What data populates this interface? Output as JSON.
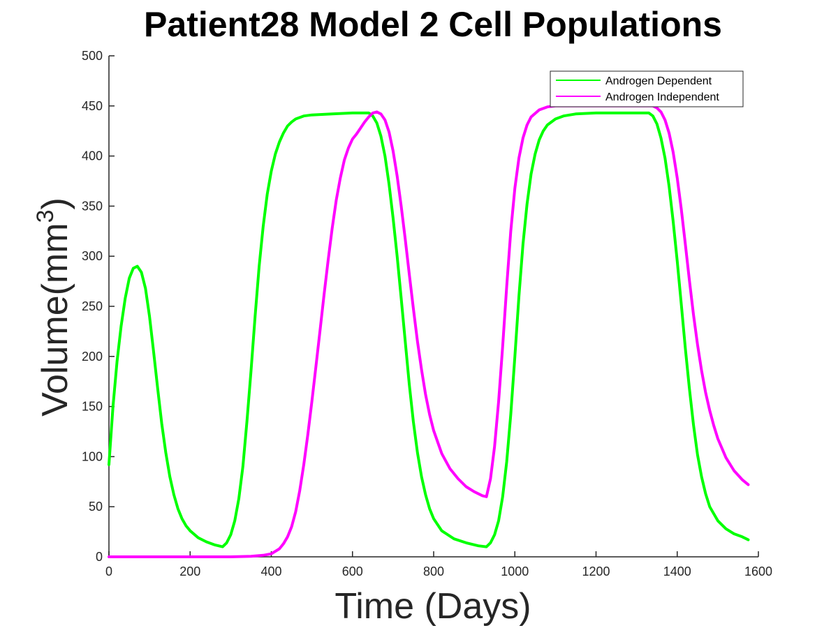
{
  "chart_data": {
    "type": "line",
    "title": "Patient28 Model 2 Cell Populations",
    "xlabel": "Time (Days)",
    "ylabel": "Volume(mm",
    "ylabel_sup": "3",
    "ylabel_close": ")",
    "xlim": [
      0,
      1600
    ],
    "ylim": [
      0,
      500
    ],
    "xticks": [
      "0",
      "200",
      "400",
      "600",
      "800",
      "1000",
      "1200",
      "1400",
      "1600"
    ],
    "yticks": [
      "0",
      "50",
      "100",
      "150",
      "200",
      "250",
      "300",
      "350",
      "400",
      "450",
      "500"
    ],
    "grid": false,
    "legend_position": "top-right",
    "series": [
      {
        "name": "Androgen Dependent",
        "color": "#00ff00",
        "points": [
          [
            0,
            92
          ],
          [
            10,
            150
          ],
          [
            20,
            195
          ],
          [
            30,
            230
          ],
          [
            40,
            258
          ],
          [
            50,
            278
          ],
          [
            60,
            288
          ],
          [
            70,
            290
          ],
          [
            80,
            284
          ],
          [
            90,
            268
          ],
          [
            100,
            240
          ],
          [
            110,
            205
          ],
          [
            120,
            168
          ],
          [
            130,
            133
          ],
          [
            140,
            104
          ],
          [
            150,
            80
          ],
          [
            160,
            62
          ],
          [
            170,
            48
          ],
          [
            180,
            38
          ],
          [
            190,
            31
          ],
          [
            200,
            26
          ],
          [
            220,
            19
          ],
          [
            240,
            15
          ],
          [
            260,
            12
          ],
          [
            280,
            10
          ],
          [
            290,
            14
          ],
          [
            300,
            22
          ],
          [
            310,
            36
          ],
          [
            320,
            58
          ],
          [
            330,
            90
          ],
          [
            340,
            135
          ],
          [
            350,
            185
          ],
          [
            360,
            240
          ],
          [
            370,
            290
          ],
          [
            380,
            330
          ],
          [
            390,
            362
          ],
          [
            400,
            385
          ],
          [
            410,
            402
          ],
          [
            420,
            414
          ],
          [
            430,
            423
          ],
          [
            440,
            430
          ],
          [
            450,
            434
          ],
          [
            460,
            437
          ],
          [
            480,
            440
          ],
          [
            500,
            441
          ],
          [
            550,
            442
          ],
          [
            600,
            443
          ],
          [
            620,
            443
          ],
          [
            640,
            443
          ],
          [
            650,
            440
          ],
          [
            660,
            433
          ],
          [
            670,
            420
          ],
          [
            680,
            400
          ],
          [
            690,
            372
          ],
          [
            700,
            338
          ],
          [
            710,
            300
          ],
          [
            720,
            258
          ],
          [
            730,
            215
          ],
          [
            740,
            172
          ],
          [
            750,
            135
          ],
          [
            760,
            104
          ],
          [
            770,
            80
          ],
          [
            780,
            62
          ],
          [
            790,
            48
          ],
          [
            800,
            38
          ],
          [
            820,
            26
          ],
          [
            850,
            18
          ],
          [
            880,
            14
          ],
          [
            910,
            11
          ],
          [
            930,
            10
          ],
          [
            940,
            14
          ],
          [
            950,
            22
          ],
          [
            960,
            36
          ],
          [
            970,
            60
          ],
          [
            980,
            95
          ],
          [
            990,
            142
          ],
          [
            1000,
            200
          ],
          [
            1010,
            260
          ],
          [
            1020,
            312
          ],
          [
            1030,
            352
          ],
          [
            1040,
            382
          ],
          [
            1050,
            402
          ],
          [
            1060,
            416
          ],
          [
            1070,
            425
          ],
          [
            1080,
            431
          ],
          [
            1100,
            437
          ],
          [
            1120,
            440
          ],
          [
            1150,
            442
          ],
          [
            1200,
            443
          ],
          [
            1250,
            443
          ],
          [
            1300,
            443
          ],
          [
            1330,
            443
          ],
          [
            1340,
            440
          ],
          [
            1350,
            432
          ],
          [
            1360,
            418
          ],
          [
            1370,
            398
          ],
          [
            1380,
            370
          ],
          [
            1390,
            335
          ],
          [
            1400,
            295
          ],
          [
            1410,
            252
          ],
          [
            1420,
            208
          ],
          [
            1430,
            168
          ],
          [
            1440,
            132
          ],
          [
            1450,
            102
          ],
          [
            1460,
            80
          ],
          [
            1470,
            63
          ],
          [
            1480,
            50
          ],
          [
            1500,
            36
          ],
          [
            1520,
            28
          ],
          [
            1540,
            23
          ],
          [
            1560,
            20
          ],
          [
            1575,
            17
          ]
        ]
      },
      {
        "name": "Androgen Independent",
        "color": "#ff00ff",
        "points": [
          [
            0,
            0
          ],
          [
            100,
            0
          ],
          [
            200,
            0
          ],
          [
            300,
            0
          ],
          [
            350,
            0.5
          ],
          [
            380,
            1.5
          ],
          [
            400,
            3
          ],
          [
            420,
            8
          ],
          [
            430,
            13
          ],
          [
            440,
            20
          ],
          [
            450,
            30
          ],
          [
            460,
            45
          ],
          [
            470,
            66
          ],
          [
            480,
            92
          ],
          [
            490,
            122
          ],
          [
            500,
            155
          ],
          [
            510,
            190
          ],
          [
            520,
            226
          ],
          [
            530,
            262
          ],
          [
            540,
            296
          ],
          [
            550,
            328
          ],
          [
            560,
            356
          ],
          [
            570,
            378
          ],
          [
            580,
            396
          ],
          [
            590,
            408
          ],
          [
            600,
            417
          ],
          [
            610,
            422
          ],
          [
            620,
            428
          ],
          [
            630,
            434
          ],
          [
            640,
            439
          ],
          [
            650,
            443
          ],
          [
            660,
            444
          ],
          [
            670,
            442
          ],
          [
            680,
            436
          ],
          [
            690,
            424
          ],
          [
            700,
            405
          ],
          [
            710,
            380
          ],
          [
            720,
            350
          ],
          [
            730,
            317
          ],
          [
            740,
            282
          ],
          [
            750,
            248
          ],
          [
            760,
            215
          ],
          [
            770,
            187
          ],
          [
            780,
            162
          ],
          [
            790,
            142
          ],
          [
            800,
            126
          ],
          [
            820,
            103
          ],
          [
            840,
            88
          ],
          [
            860,
            78
          ],
          [
            880,
            70
          ],
          [
            900,
            65
          ],
          [
            920,
            61
          ],
          [
            930,
            60
          ],
          [
            940,
            78
          ],
          [
            950,
            110
          ],
          [
            960,
            155
          ],
          [
            970,
            210
          ],
          [
            980,
            270
          ],
          [
            990,
            325
          ],
          [
            1000,
            368
          ],
          [
            1010,
            398
          ],
          [
            1020,
            418
          ],
          [
            1030,
            431
          ],
          [
            1040,
            439
          ],
          [
            1060,
            446
          ],
          [
            1080,
            449
          ],
          [
            1100,
            450
          ],
          [
            1150,
            450
          ],
          [
            1200,
            450
          ],
          [
            1250,
            450
          ],
          [
            1300,
            450
          ],
          [
            1340,
            450
          ],
          [
            1350,
            448
          ],
          [
            1360,
            444
          ],
          [
            1370,
            436
          ],
          [
            1380,
            423
          ],
          [
            1390,
            404
          ],
          [
            1400,
            378
          ],
          [
            1410,
            347
          ],
          [
            1420,
            312
          ],
          [
            1430,
            276
          ],
          [
            1440,
            242
          ],
          [
            1450,
            212
          ],
          [
            1460,
            186
          ],
          [
            1470,
            164
          ],
          [
            1480,
            146
          ],
          [
            1490,
            131
          ],
          [
            1500,
            118
          ],
          [
            1520,
            99
          ],
          [
            1540,
            86
          ],
          [
            1560,
            77
          ],
          [
            1575,
            72
          ]
        ]
      }
    ]
  }
}
